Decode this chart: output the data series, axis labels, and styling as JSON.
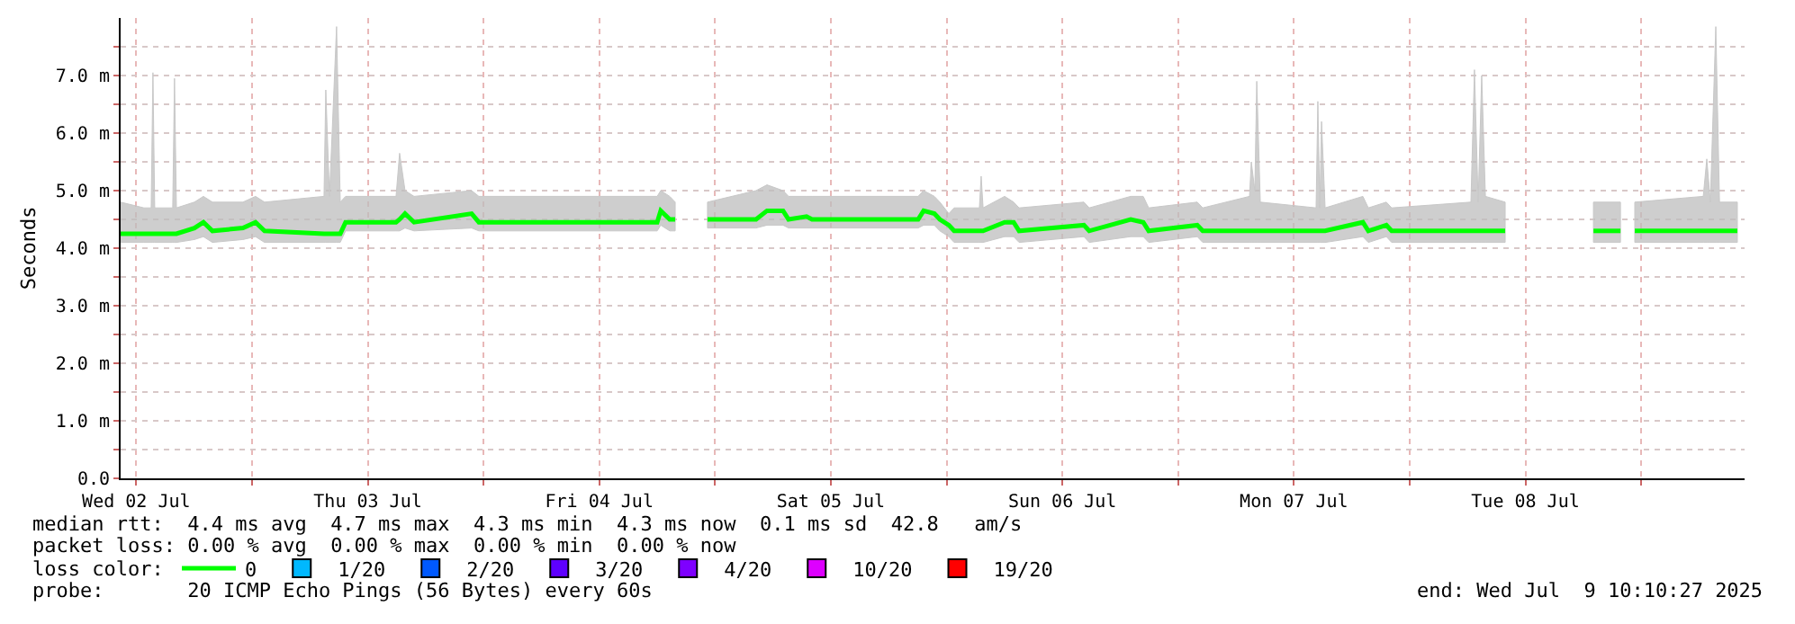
{
  "chart_data": {
    "type": "line",
    "ylabel": "Seconds",
    "xlim": [
      "2025-07-02T10:23",
      "2025-07-09T10:43"
    ],
    "xticks": [
      {
        "value": "2025-07-02T12:00",
        "label": "Wed 02 Jul"
      },
      {
        "value": "2025-07-03T00:00",
        "label": null
      },
      {
        "value": "2025-07-03T12:00",
        "label": "Thu 03 Jul"
      },
      {
        "value": "2025-07-04T00:00",
        "label": null
      },
      {
        "value": "2025-07-04T12:00",
        "label": "Fri 04 Jul"
      },
      {
        "value": "2025-07-05T00:00",
        "label": null
      },
      {
        "value": "2025-07-05T12:00",
        "label": "Sat 05 Jul"
      },
      {
        "value": "2025-07-06T00:00",
        "label": null
      },
      {
        "value": "2025-07-06T12:00",
        "label": "Sun 06 Jul"
      },
      {
        "value": "2025-07-07T00:00",
        "label": null
      },
      {
        "value": "2025-07-07T12:00",
        "label": "Mon 07 Jul"
      },
      {
        "value": "2025-07-08T00:00",
        "label": null
      },
      {
        "value": "2025-07-08T12:00",
        "label": "Tue 08 Jul"
      },
      {
        "value": "2025-07-09T00:00",
        "label": null
      }
    ],
    "ylim": [
      0,
      8
    ],
    "yticks": [
      {
        "value": 0,
        "label": "0.0"
      },
      {
        "value": 0.5,
        "label": null
      },
      {
        "value": 1,
        "label": "1.0 m"
      },
      {
        "value": 1.5,
        "label": null
      },
      {
        "value": 2,
        "label": "2.0 m"
      },
      {
        "value": 2.5,
        "label": null
      },
      {
        "value": 3,
        "label": "3.0 m"
      },
      {
        "value": 3.5,
        "label": null
      },
      {
        "value": 4,
        "label": "4.0 m"
      },
      {
        "value": 4.5,
        "label": null
      },
      {
        "value": 5,
        "label": "5.0 m"
      },
      {
        "value": 5.5,
        "label": null
      },
      {
        "value": 6,
        "label": "6.0 m"
      },
      {
        "value": 6.5,
        "label": null
      },
      {
        "value": 7,
        "label": "7.0 m"
      },
      {
        "value": 7.5,
        "label": null
      }
    ],
    "grid": true,
    "legend": "bottom left",
    "legend_title": "loss color:",
    "marker": "none",
    "line_style": "solid",
    "annotations": [
      "median rtt:  4.4 ms avg  4.7 ms max  4.3 ms min  4.3 ms now  0.1 ms sd  42.8   am/s",
      "packet loss: 0.00 % avg  0.00 % max  0.00 % min  0.00 % now",
      "probe:       20 ICMP Echo Pings (56 Bytes) every 60s",
      "end: Wed Jul  9 10:10:27 2025"
    ],
    "series": [
      {
        "name": "0",
        "color": "#00ff00",
        "x": [
          "2025-07-02T10:23",
          "2025-07-02T12:48",
          "2025-07-02T13:33",
          "2025-07-02T13:44",
          "2025-07-02T13:55",
          "2025-07-02T15:47",
          "2025-07-02T15:58",
          "2025-07-02T16:10",
          "2025-07-02T18:02",
          "2025-07-02T18:58",
          "2025-07-02T19:54",
          "2025-07-02T23:04",
          "2025-07-03T00:22",
          "2025-07-03T01:18",
          "2025-07-03T07:28",
          "2025-07-03T07:39",
          "2025-07-03T08:02",
          "2025-07-03T08:46",
          "2025-07-03T09:09",
          "2025-07-03T09:42",
          "2025-07-03T14:56",
          "2025-07-03T15:18",
          "2025-07-03T15:52",
          "2025-07-03T16:48",
          "2025-07-03T22:46",
          "2025-07-03T23:31",
          "2025-07-04T18:00",
          "2025-07-04T18:22",
          "2025-07-04T19:18",
          "2025-07-04T19:52",
          "2025-07-04T21:21",
          "2025-07-04T23:13",
          "2025-07-05T04:15",
          "2025-07-05T05:23",
          "2025-07-05T07:03",
          "2025-07-05T07:37",
          "2025-07-05T09:29",
          "2025-07-05T10:03",
          "2025-07-05T21:03",
          "2025-07-05T21:37",
          "2025-07-05T22:44",
          "2025-07-05T23:18",
          "2025-07-06T00:14",
          "2025-07-06T00:47",
          "2025-07-06T03:24",
          "2025-07-06T03:35",
          "2025-07-06T03:47",
          "2025-07-06T06:01",
          "2025-07-06T06:57",
          "2025-07-06T07:31",
          "2025-07-06T14:14",
          "2025-07-06T14:47",
          "2025-07-06T19:05",
          "2025-07-06T20:23",
          "2025-07-06T20:57",
          "2025-07-07T01:59",
          "2025-07-07T02:33",
          "2025-07-07T07:24",
          "2025-07-07T07:35",
          "2025-07-07T07:57",
          "2025-07-07T08:09",
          "2025-07-07T08:31",
          "2025-07-07T14:18",
          "2025-07-07T14:29",
          "2025-07-07T14:41",
          "2025-07-07T14:52",
          "2025-07-07T15:14",
          "2025-07-07T19:09",
          "2025-07-07T19:43",
          "2025-07-07T21:35",
          "2025-07-07T22:08",
          "2025-07-08T06:21",
          "2025-07-08T06:43",
          "2025-07-08T07:06",
          "2025-07-08T07:28",
          "2025-07-08T07:51",
          "2025-07-08T09:54",
          "2025-07-08T14:22",
          "2025-07-08T19:03",
          "2025-07-08T21:51",
          "2025-07-08T22:47",
          "2025-07-08T23:20",
          "2025-07-09T06:26",
          "2025-07-09T06:48",
          "2025-07-09T07:10",
          "2025-07-09T07:44",
          "2025-07-09T08:07",
          "2025-07-09T09:58"
        ],
        "values": [
          4.25,
          4.25,
          4.25,
          4.25,
          4.25,
          4.25,
          4.25,
          4.25,
          4.35,
          4.45,
          4.3,
          4.35,
          4.45,
          4.3,
          4.25,
          4.25,
          4.25,
          4.25,
          4.25,
          4.45,
          4.45,
          4.5,
          4.6,
          4.45,
          4.6,
          4.45,
          4.45,
          4.65,
          4.5,
          4.5,
          null,
          4.5,
          4.5,
          4.65,
          4.65,
          4.5,
          4.55,
          4.5,
          4.5,
          4.65,
          4.6,
          4.5,
          4.4,
          4.3,
          4.3,
          4.3,
          4.3,
          4.45,
          4.45,
          4.3,
          4.4,
          4.3,
          4.5,
          4.45,
          4.3,
          4.4,
          4.3,
          4.3,
          4.3,
          4.3,
          4.3,
          4.3,
          4.3,
          4.3,
          4.3,
          4.3,
          4.3,
          4.45,
          4.3,
          4.4,
          4.3,
          4.3,
          4.3,
          4.3,
          4.3,
          4.3,
          4.3,
          null,
          4.3,
          4.3,
          null,
          4.3,
          4.3,
          4.3,
          4.3,
          4.3,
          4.3,
          4.3
        ],
        "lower": [
          4.1,
          4.1,
          4.1,
          4.1,
          4.1,
          4.1,
          4.1,
          4.1,
          4.15,
          4.2,
          4.1,
          4.15,
          4.2,
          4.1,
          4.1,
          4.1,
          4.1,
          4.1,
          4.1,
          4.3,
          4.3,
          4.3,
          4.35,
          4.3,
          4.35,
          4.3,
          4.3,
          4.4,
          4.3,
          4.3,
          null,
          4.35,
          4.35,
          4.4,
          4.4,
          4.35,
          4.35,
          4.35,
          4.35,
          4.4,
          4.4,
          4.3,
          4.2,
          4.1,
          4.1,
          4.1,
          4.1,
          4.2,
          4.2,
          4.1,
          4.2,
          4.1,
          4.2,
          4.2,
          4.1,
          4.2,
          4.1,
          4.1,
          4.1,
          4.1,
          4.1,
          4.1,
          4.1,
          4.1,
          4.1,
          4.1,
          4.1,
          4.2,
          4.1,
          4.2,
          4.1,
          4.1,
          4.1,
          4.1,
          4.1,
          4.1,
          4.1,
          null,
          4.1,
          4.1,
          null,
          4.1,
          4.1,
          4.1,
          4.1,
          4.1,
          4.1,
          4.1
        ],
        "upper": [
          4.8,
          4.7,
          4.7,
          7.05,
          4.7,
          4.7,
          6.95,
          4.7,
          4.8,
          4.9,
          4.8,
          4.8,
          4.9,
          4.8,
          4.9,
          6.75,
          4.9,
          7.85,
          4.8,
          4.9,
          4.9,
          5.65,
          5.0,
          4.9,
          5.0,
          4.9,
          4.9,
          5.0,
          4.9,
          4.8,
          null,
          4.8,
          5.0,
          5.1,
          5.0,
          4.9,
          4.9,
          4.9,
          4.9,
          5.0,
          4.9,
          4.8,
          4.6,
          4.7,
          4.7,
          5.25,
          4.7,
          4.9,
          4.8,
          4.7,
          4.8,
          4.7,
          4.9,
          4.9,
          4.7,
          4.8,
          4.7,
          4.9,
          5.5,
          5.0,
          6.9,
          4.8,
          4.7,
          6.55,
          4.7,
          6.2,
          4.7,
          4.9,
          4.7,
          4.8,
          4.7,
          4.8,
          7.1,
          4.8,
          7.0,
          4.9,
          4.8,
          null,
          4.8,
          4.8,
          null,
          4.8,
          4.9,
          5.55,
          4.8,
          7.85,
          4.8,
          4.8
        ]
      },
      {
        "name": "1/20",
        "color": "#00b8ff"
      },
      {
        "name": "2/20",
        "color": "#0059ff"
      },
      {
        "name": "3/20",
        "color": "#5e00ff"
      },
      {
        "name": "4/20",
        "color": "#7e00ff"
      },
      {
        "name": "10/20",
        "color": "#dd00ff"
      },
      {
        "name": "19/20",
        "color": "#ff0000"
      }
    ]
  }
}
